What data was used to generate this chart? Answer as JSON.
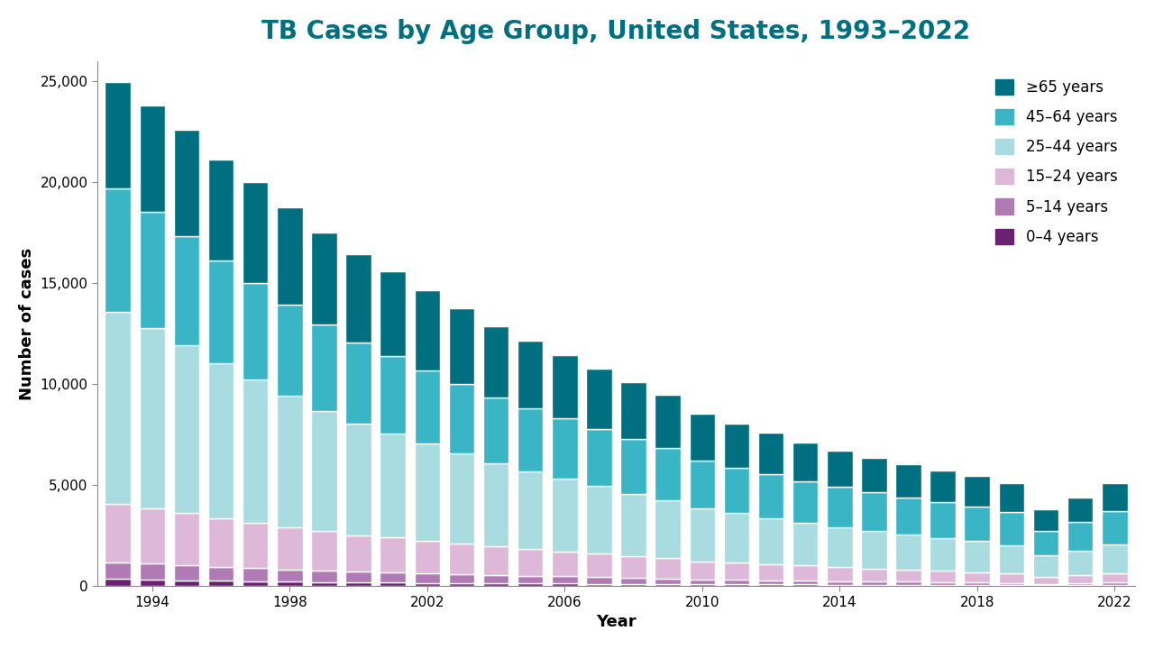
{
  "title": "TB Cases by Age Group, United States, 1993–2022",
  "xlabel": "Year",
  "ylabel": "Number of cases",
  "years": [
    1993,
    1994,
    1995,
    1996,
    1997,
    1998,
    1999,
    2000,
    2001,
    2002,
    2003,
    2004,
    2005,
    2006,
    2007,
    2008,
    2009,
    2010,
    2011,
    2012,
    2013,
    2014,
    2015,
    2016,
    2017,
    2018,
    2019,
    2020,
    2021,
    2022
  ],
  "colors": [
    "#6b2070",
    "#b07ab5",
    "#ddb8d8",
    "#a8dce0",
    "#3ab5c6",
    "#007080"
  ],
  "legend_labels": [
    "≥65 years",
    "45–64 years",
    "25–44 years",
    "15–24 years",
    "5–14 years",
    "0–4 years"
  ],
  "data": {
    "0-4": [
      356,
      330,
      297,
      256,
      236,
      220,
      197,
      183,
      178,
      163,
      152,
      141,
      136,
      130,
      119,
      102,
      105,
      92,
      93,
      82,
      79,
      73,
      68,
      63,
      57,
      53,
      47,
      35,
      51,
      62
    ],
    "5-14": [
      830,
      790,
      760,
      700,
      660,
      610,
      575,
      535,
      505,
      475,
      440,
      405,
      380,
      355,
      325,
      300,
      270,
      245,
      230,
      210,
      195,
      180,
      165,
      150,
      138,
      126,
      113,
      85,
      96,
      118
    ],
    "15-24": [
      2900,
      2750,
      2580,
      2400,
      2230,
      2080,
      1940,
      1810,
      1720,
      1620,
      1510,
      1410,
      1320,
      1240,
      1160,
      1070,
      1010,
      890,
      840,
      790,
      740,
      685,
      645,
      600,
      555,
      520,
      465,
      345,
      390,
      460
    ],
    "25-44": [
      9500,
      8900,
      8300,
      7700,
      7100,
      6500,
      5980,
      5520,
      5150,
      4800,
      4480,
      4120,
      3860,
      3600,
      3340,
      3100,
      2880,
      2600,
      2440,
      2290,
      2130,
      1980,
      1850,
      1750,
      1630,
      1545,
      1410,
      1040,
      1200,
      1410
    ],
    "45-64": [
      6100,
      5750,
      5400,
      5050,
      4780,
      4520,
      4260,
      4010,
      3820,
      3630,
      3440,
      3260,
      3120,
      2980,
      2840,
      2700,
      2560,
      2370,
      2265,
      2170,
      2065,
      1990,
      1910,
      1840,
      1770,
      1705,
      1635,
      1245,
      1440,
      1670
    ],
    "65+": [
      5300,
      5280,
      5260,
      5000,
      4990,
      4820,
      4580,
      4380,
      4200,
      3960,
      3730,
      3540,
      3330,
      3150,
      2980,
      2810,
      2640,
      2320,
      2175,
      2040,
      1895,
      1790,
      1700,
      1635,
      1580,
      1510,
      1440,
      1070,
      1215,
      1390
    ]
  },
  "ylim": [
    0,
    26000
  ],
  "yticks": [
    0,
    5000,
    10000,
    15000,
    20000,
    25000
  ],
  "background_color": "#ffffff",
  "title_color": "#007080",
  "title_fontsize": 20,
  "axis_label_fontsize": 13,
  "tick_fontsize": 11,
  "bar_width": 0.75,
  "edge_color": "white",
  "edge_linewidth": 1.0
}
